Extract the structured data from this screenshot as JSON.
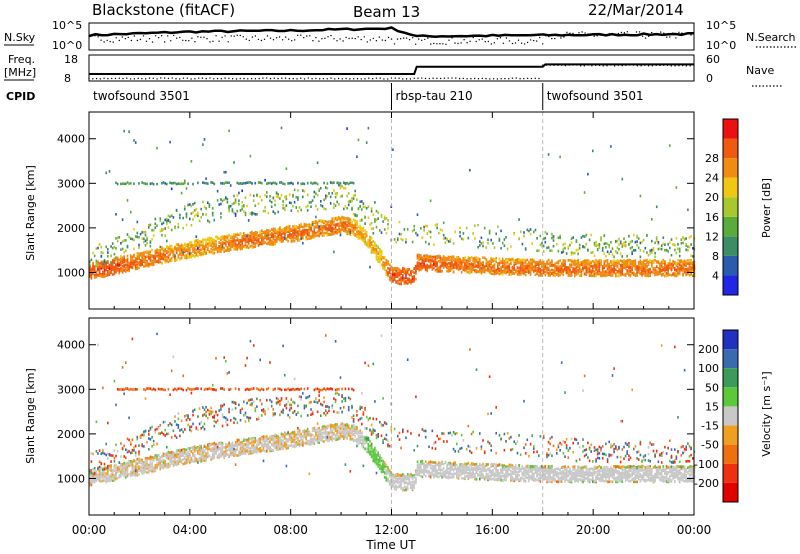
{
  "header": {
    "station": "Blackstone (fitACF)",
    "beam": "Beam 13",
    "date": "22/Mar/2014"
  },
  "nsky_panel": {
    "left_label": "N.Sky",
    "right_label": "N.Search",
    "left_ticks": [
      "10^5",
      "10^0"
    ],
    "right_ticks": [
      "10^5",
      "10^0"
    ]
  },
  "freq_panel": {
    "left_label_1": "Freq.",
    "left_label_2": "[MHz]",
    "left_ticks": [
      "18",
      "8"
    ],
    "right_label": "Nave",
    "right_ticks": [
      "60",
      "0"
    ]
  },
  "cpid": {
    "label": "CPID",
    "segments": [
      {
        "name": "twofsound 3501",
        "start_h": 0,
        "end_h": 12
      },
      {
        "name": "rbsp-tau 210",
        "start_h": 12,
        "end_h": 18
      },
      {
        "name": "twofsound 3501",
        "start_h": 18,
        "end_h": 24
      }
    ]
  },
  "x_axis": {
    "label": "Time UT",
    "ticks": [
      "00:00",
      "04:00",
      "08:00",
      "12:00",
      "16:00",
      "20:00",
      "00:00"
    ],
    "range_h": [
      0,
      24
    ]
  },
  "y_axis": {
    "label": "Slant Range [km]",
    "ticks": [
      "1000",
      "2000",
      "3000",
      "4000"
    ],
    "range_km": [
      180,
      4600
    ]
  },
  "power_scale": {
    "label": "Power [dB]",
    "ticks": [
      "4",
      "8",
      "12",
      "16",
      "20",
      "24",
      "28"
    ],
    "colors": [
      "#1f26e6",
      "#2a5cae",
      "#3c8c66",
      "#5aaa3c",
      "#a8c82e",
      "#f0c814",
      "#f08c10",
      "#f05a10",
      "#ec1010"
    ]
  },
  "velocity_scale": {
    "label": "Velocity [m s⁻¹]",
    "ticks": [
      "200",
      "100",
      "50",
      "15",
      "-15",
      "-50",
      "-100",
      "-200"
    ],
    "colors": [
      "#2030c0",
      "#3a6ab0",
      "#3c9a5a",
      "#5cc83c",
      "#c8c8c8",
      "#f0a020",
      "#f07010",
      "#ec3010",
      "#e00000"
    ]
  },
  "chart_data": {
    "type": "heatmap",
    "title": "Blackstone (fitACF) Beam 13 22/Mar/2014",
    "xlabel": "Time UT",
    "ylabel": "Slant Range [km]",
    "xlim_hours": [
      0,
      24
    ],
    "ylim_km": [
      180,
      4600
    ],
    "main_echo_band": [
      {
        "t": 0.0,
        "range_km": 1000,
        "power_db": 28,
        "velocity": -10
      },
      {
        "t": 1.0,
        "range_km": 1120,
        "power_db": 28,
        "velocity": -10
      },
      {
        "t": 2.0,
        "range_km": 1250,
        "power_db": 26,
        "velocity": -10
      },
      {
        "t": 3.0,
        "range_km": 1380,
        "power_db": 26,
        "velocity": -10
      },
      {
        "t": 4.0,
        "range_km": 1500,
        "power_db": 24,
        "velocity": -10
      },
      {
        "t": 5.0,
        "range_km": 1600,
        "power_db": 24,
        "velocity": -10
      },
      {
        "t": 6.0,
        "range_km": 1680,
        "power_db": 26,
        "velocity": -10
      },
      {
        "t": 7.0,
        "range_km": 1760,
        "power_db": 26,
        "velocity": -10
      },
      {
        "t": 8.0,
        "range_km": 1850,
        "power_db": 26,
        "velocity": -10
      },
      {
        "t": 9.0,
        "range_km": 1950,
        "power_db": 26,
        "velocity": -10
      },
      {
        "t": 10.0,
        "range_km": 2050,
        "power_db": 26,
        "velocity": -10
      },
      {
        "t": 10.5,
        "range_km": 2000,
        "power_db": 24,
        "velocity": -10
      },
      {
        "t": 11.0,
        "range_km": 1750,
        "power_db": 22,
        "velocity": 20
      },
      {
        "t": 11.5,
        "range_km": 1350,
        "power_db": 22,
        "velocity": 40
      },
      {
        "t": 12.0,
        "range_km": 900,
        "power_db": 28,
        "velocity": -5
      },
      {
        "t": 12.9,
        "range_km": 900,
        "power_db": 28,
        "velocity": -5
      },
      {
        "t": 13.0,
        "range_km": 1200,
        "power_db": 28,
        "velocity": -5
      },
      {
        "t": 15.0,
        "range_km": 1150,
        "power_db": 26,
        "velocity": -5
      },
      {
        "t": 17.0,
        "range_km": 1100,
        "power_db": 26,
        "velocity": -5
      },
      {
        "t": 18.0,
        "range_km": 1080,
        "power_db": 26,
        "velocity": -5
      },
      {
        "t": 20.0,
        "range_km": 1080,
        "power_db": 26,
        "velocity": -5
      },
      {
        "t": 22.0,
        "range_km": 1080,
        "power_db": 26,
        "velocity": -5
      },
      {
        "t": 24.0,
        "range_km": 1080,
        "power_db": 26,
        "velocity": -5
      }
    ],
    "secondary_band": [
      {
        "t": 0.0,
        "range_km": 1300
      },
      {
        "t": 2.0,
        "range_km": 1800
      },
      {
        "t": 4.0,
        "range_km": 2300
      },
      {
        "t": 6.0,
        "range_km": 2500
      },
      {
        "t": 8.0,
        "range_km": 2600
      },
      {
        "t": 10.0,
        "range_km": 2700
      },
      {
        "t": 12.0,
        "range_km": 1900
      },
      {
        "t": 16.0,
        "range_km": 1800
      },
      {
        "t": 20.0,
        "range_km": 1600
      },
      {
        "t": 24.0,
        "range_km": 1600
      }
    ],
    "fixed_range_line": {
      "range_km": 3000,
      "t_start": 1,
      "t_end": 10.5
    },
    "nsky": [
      {
        "t": 0,
        "v": 0.6
      },
      {
        "t": 4,
        "v": 0.75
      },
      {
        "t": 8,
        "v": 0.8
      },
      {
        "t": 12,
        "v": 0.9
      },
      {
        "t": 13,
        "v": 0.55
      },
      {
        "t": 18,
        "v": 0.6
      },
      {
        "t": 24,
        "v": 0.65
      }
    ],
    "frequency_mhz": [
      {
        "t": 0,
        "f": 10.5
      },
      {
        "t": 12.9,
        "f": 10.5
      },
      {
        "t": 13,
        "f": 13.5
      },
      {
        "t": 18,
        "f": 13.5
      },
      {
        "t": 18.1,
        "f": 14.5
      },
      {
        "t": 24,
        "f": 14.5
      }
    ]
  }
}
